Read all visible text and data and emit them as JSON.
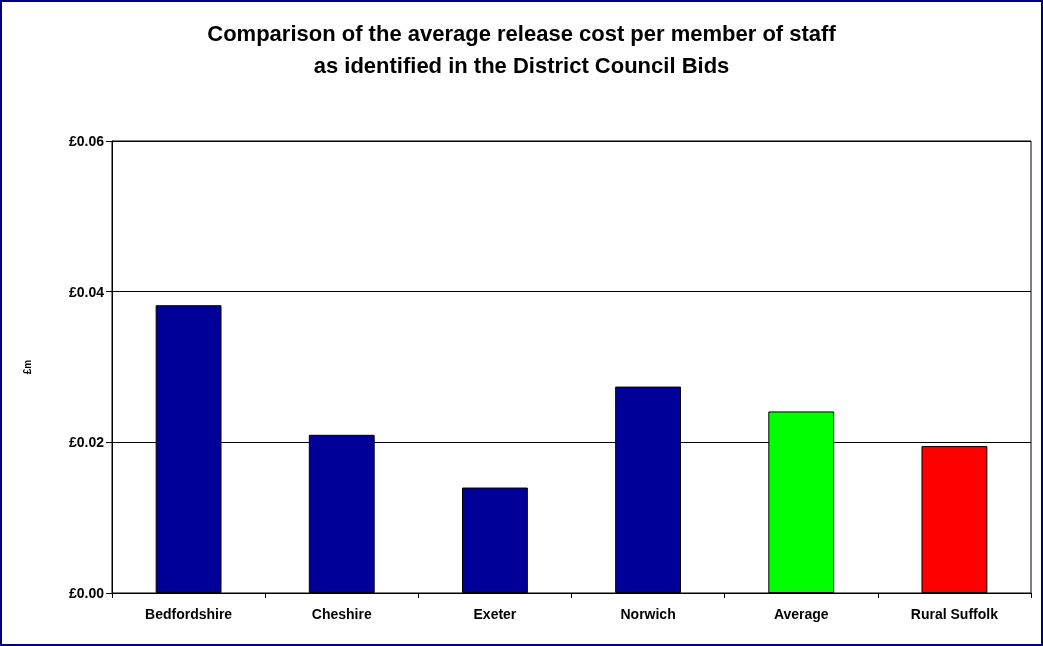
{
  "chart_data": {
    "type": "bar",
    "title": "Comparison of the average release cost per member of staff\nas identified in the District Council Bids",
    "ylabel": "£m",
    "categories": [
      "Bedfordshire",
      "Cheshire",
      "Exeter",
      "Norwich",
      "Average",
      "Rural Suffolk"
    ],
    "values": [
      0.0382,
      0.021,
      0.014,
      0.0274,
      0.0241,
      0.0195
    ],
    "colors": [
      "#000099",
      "#000099",
      "#000099",
      "#000099",
      "#00ff00",
      "#ff0000"
    ],
    "ylim": [
      0,
      0.06
    ],
    "yticks": [
      {
        "value": 0,
        "label": "£0.00"
      },
      {
        "value": 0.02,
        "label": "£0.02"
      },
      {
        "value": 0.04,
        "label": "£0.04"
      },
      {
        "value": 0.06,
        "label": "£0.06"
      }
    ],
    "grid": "y"
  }
}
